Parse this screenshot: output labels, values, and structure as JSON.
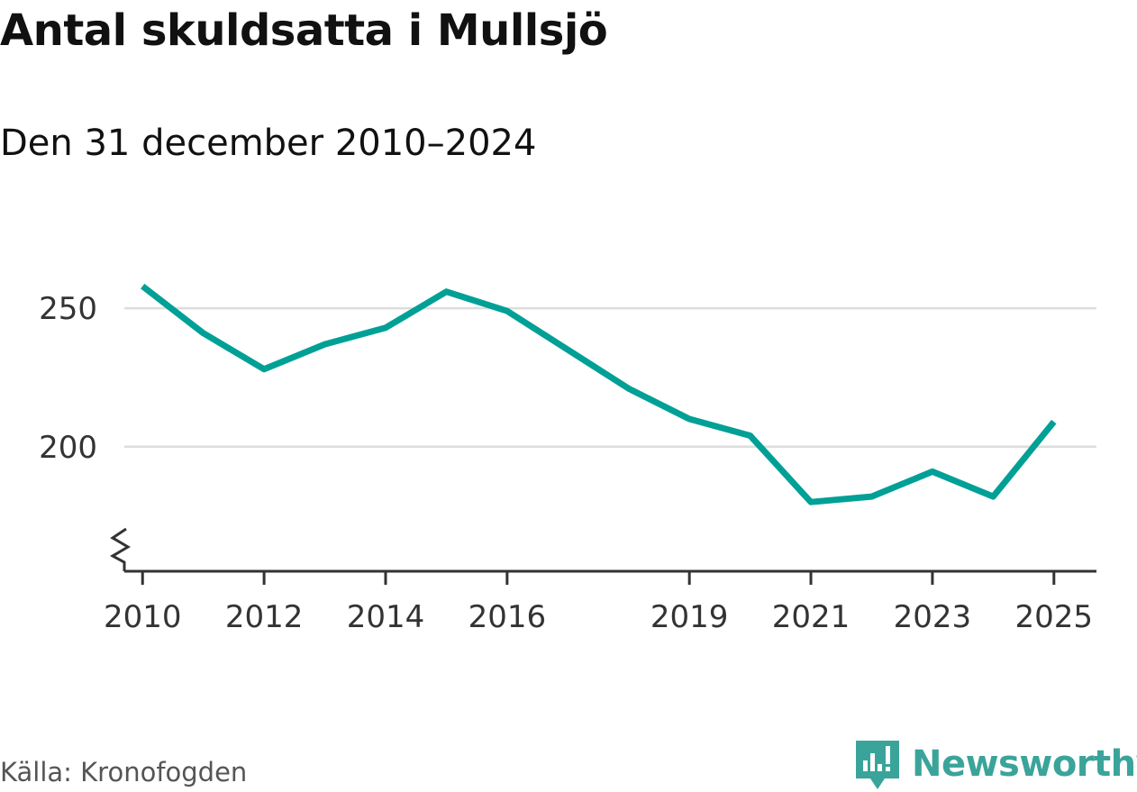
{
  "title": "Antal skuldsatta i Mullsjö",
  "subtitle": "Den 31 december 2010–2024",
  "source": "Källa: Kronofogden",
  "brand": {
    "name": "Newsworthy",
    "icon": "newsworthy-logo-icon",
    "color": "#3aa49a"
  },
  "chart_data": {
    "type": "line",
    "x": [
      2010,
      2011,
      2012,
      2013,
      2014,
      2015,
      2016,
      2017,
      2018,
      2019,
      2020,
      2021,
      2022,
      2023,
      2024,
      2025
    ],
    "series": [
      {
        "values": [
          258,
          241,
          228,
          237,
          243,
          256,
          249,
          235,
          221,
          210,
          204,
          180,
          182,
          191,
          182,
          209
        ],
        "color": "#00a096"
      }
    ],
    "x_ticks": [
      2010,
      2012,
      2014,
      2016,
      2019,
      2021,
      2023,
      2025
    ],
    "y_ticks": [
      200,
      250
    ],
    "xlim": [
      2009.7,
      2025.7
    ],
    "ylim": [
      155,
      280
    ],
    "y_axis_break": true,
    "grid": "horizontal"
  }
}
